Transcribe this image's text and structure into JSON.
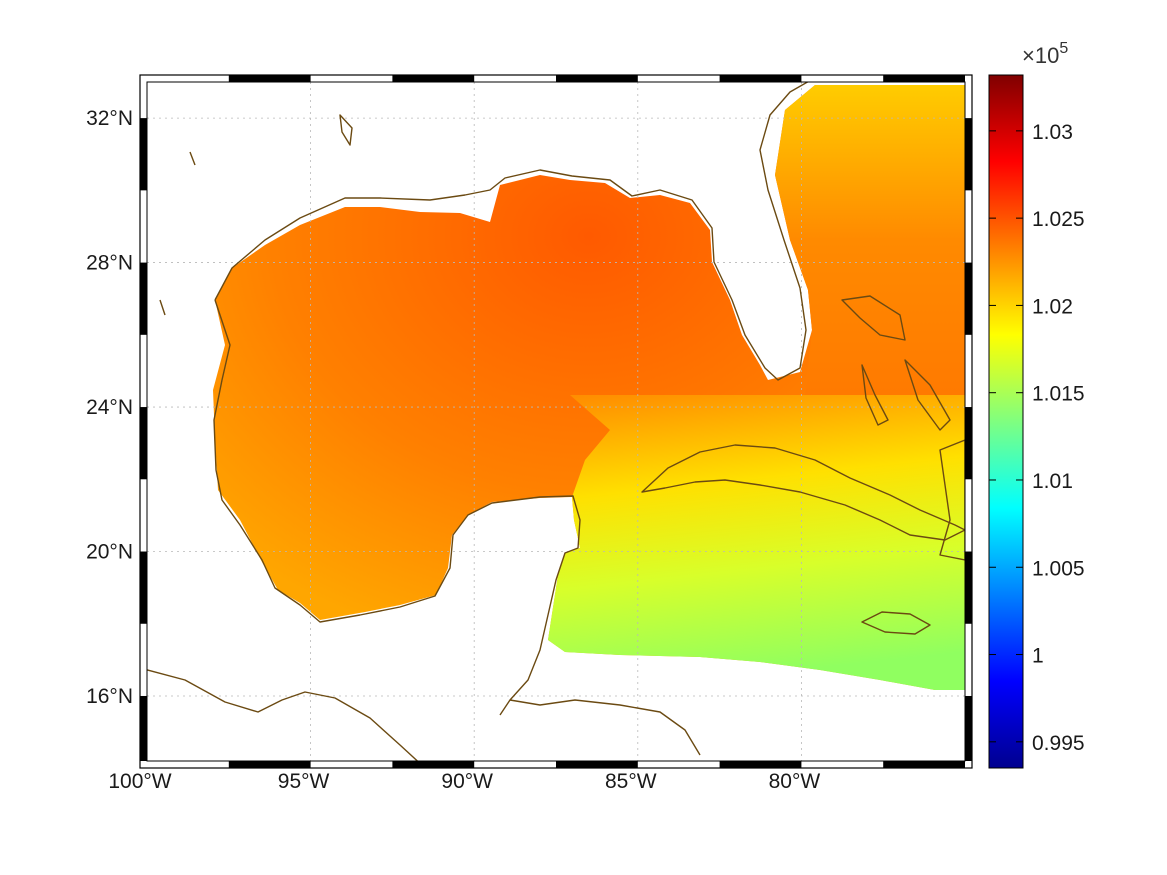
{
  "map": {
    "lon_range": [
      -100,
      -75
    ],
    "lat_range": [
      14.2,
      33
    ],
    "lon_ticks": [
      {
        "value": -100,
        "label": "100°W"
      },
      {
        "value": -95,
        "label": "95°W"
      },
      {
        "value": -90,
        "label": "90°W"
      },
      {
        "value": -85,
        "label": "85°W"
      },
      {
        "value": -80,
        "label": "80°W"
      }
    ],
    "lat_ticks": [
      {
        "value": 32,
        "label": "32°N"
      },
      {
        "value": 28,
        "label": "28°N"
      },
      {
        "value": 24,
        "label": "24°N"
      },
      {
        "value": 20,
        "label": "20°N"
      },
      {
        "value": 16,
        "label": "16°N"
      }
    ],
    "grid": "dotted",
    "frame": "alternating black-white",
    "coastline_color": "#6b4a12"
  },
  "colorbar": {
    "colormap": "jet",
    "range": [
      0.9935,
      1.0332
    ],
    "multiplier": "×10",
    "exponent": "5",
    "ticks": [
      {
        "value": 1.03,
        "label": "1.03"
      },
      {
        "value": 1.025,
        "label": "1.025"
      },
      {
        "value": 1.02,
        "label": "1.02"
      },
      {
        "value": 1.015,
        "label": "1.015"
      },
      {
        "value": 1.01,
        "label": "1.01"
      },
      {
        "value": 1.005,
        "label": "1.005"
      },
      {
        "value": 1.0,
        "label": "1"
      },
      {
        "value": 0.995,
        "label": "0.995"
      }
    ]
  }
}
